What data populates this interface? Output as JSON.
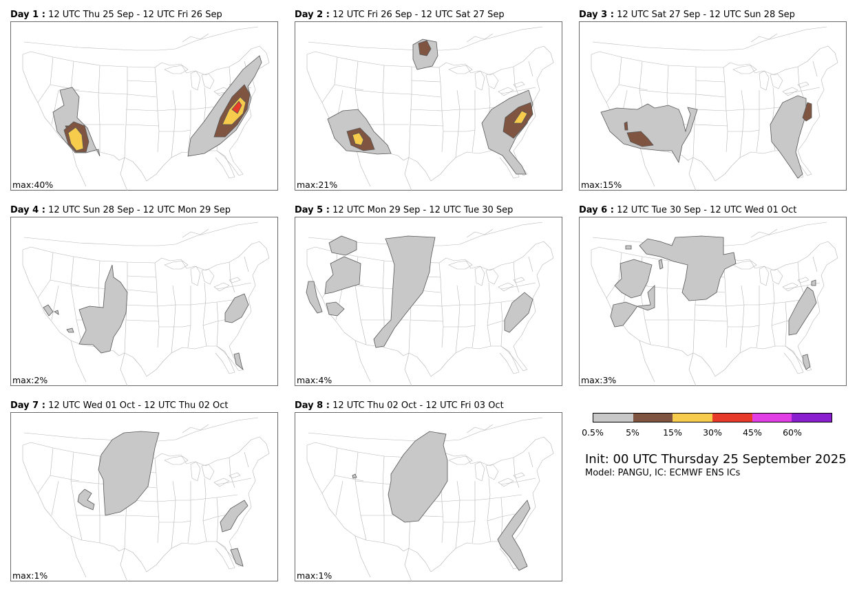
{
  "panels": [
    {
      "label": "Day 1 :",
      "period": "12 UTC Thu 25 Sep - 12 UTC Fri 26 Sep",
      "max": "max:40%"
    },
    {
      "label": "Day 2 :",
      "period": "12 UTC Fri 26 Sep - 12 UTC Sat 27 Sep",
      "max": "max:21%"
    },
    {
      "label": "Day 3 :",
      "period": "12 UTC Sat 27 Sep - 12 UTC Sun 28 Sep",
      "max": "max:15%"
    },
    {
      "label": "Day 4 :",
      "period": "12 UTC Sun 28 Sep - 12 UTC Mon 29 Sep",
      "max": "max:2%"
    },
    {
      "label": "Day 5 :",
      "period": "12 UTC Mon 29 Sep - 12 UTC Tue 30 Sep",
      "max": "max:4%"
    },
    {
      "label": "Day 6 :",
      "period": "12 UTC Tue 30 Sep - 12 UTC Wed 01 Oct",
      "max": "max:3%"
    },
    {
      "label": "Day 7 :",
      "period": "12 UTC Wed 01 Oct - 12 UTC Thu 02 Oct",
      "max": "max:1%"
    },
    {
      "label": "Day 8 :",
      "period": "12 UTC Thu 02 Oct - 12 UTC Fri 03 Oct",
      "max": "max:1%"
    }
  ],
  "legend": {
    "colors": [
      "#c8c8c8",
      "#7f5440",
      "#f7cb4b",
      "#e83a2a",
      "#e23ee5",
      "#8a1fd0"
    ],
    "ticks": [
      "0.5%",
      "5%",
      "15%",
      "30%",
      "45%",
      "60%"
    ]
  },
  "init": "Init: 00 UTC Thursday 25 September 2025",
  "model": "Model: PANGU, IC: ECMWF ENS ICs",
  "colors": {
    "outline": "#555555",
    "map_lines": "#b4b4b4",
    "frame": "#666666"
  }
}
